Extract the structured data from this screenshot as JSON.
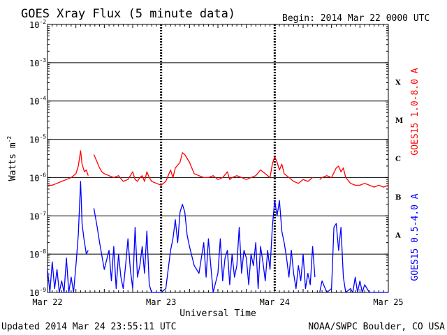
{
  "header": {
    "title": "GOES Xray Flux (5 minute data)",
    "begin": "Begin:  2014 Mar 22 0000 UTC"
  },
  "footer": {
    "updated": "Updated 2014 Mar 24 23:55:11 UTC",
    "source": "NOAA/SWPC Boulder, CO USA"
  },
  "chart_data": {
    "type": "line",
    "title": "GOES Xray Flux (5 minute data)",
    "xlabel": "Universal Time",
    "ylabel": "Watts m",
    "ylabel_sup": "-2",
    "yscale": "log",
    "ylim": [
      1e-09,
      0.01
    ],
    "xlim": [
      0,
      72
    ],
    "x_unit": "hours since 2014 Mar 22 0000 UTC",
    "x_ticks": [
      {
        "x": 0,
        "label": "Mar 22"
      },
      {
        "x": 24,
        "label": "Mar 23"
      },
      {
        "x": 48,
        "label": "Mar 24"
      },
      {
        "x": 72,
        "label": "Mar 25"
      }
    ],
    "y_ticks": [
      {
        "exp": -9,
        "base": "10",
        "sup": "-9"
      },
      {
        "exp": -8,
        "base": "10",
        "sup": "-8"
      },
      {
        "exp": -7,
        "base": "10",
        "sup": "-7"
      },
      {
        "exp": -6,
        "base": "10",
        "sup": "-6"
      },
      {
        "exp": -5,
        "base": "10",
        "sup": "-5"
      },
      {
        "exp": -4,
        "base": "10",
        "sup": "-4"
      },
      {
        "exp": -3,
        "base": "10",
        "sup": "-3"
      },
      {
        "exp": -2,
        "base": "10",
        "sup": "-2"
      }
    ],
    "flare_classes": [
      {
        "label": "A",
        "log_center": -7.5
      },
      {
        "label": "B",
        "log_center": -6.5
      },
      {
        "label": "C",
        "log_center": -5.5
      },
      {
        "label": "M",
        "log_center": -4.5
      },
      {
        "label": "X",
        "log_center": -3.5
      }
    ],
    "grid": true,
    "series": [
      {
        "name": "GOES15 1.0-8.0 A",
        "color": "#ff0000",
        "segments": [
          [
            [
              0,
              -6.2
            ],
            [
              1,
              -6.2
            ],
            [
              2,
              -6.15
            ],
            [
              3,
              -6.1
            ],
            [
              4,
              -6.05
            ],
            [
              5,
              -6.0
            ],
            [
              6,
              -5.9
            ],
            [
              6.5,
              -5.7
            ],
            [
              7,
              -5.3
            ],
            [
              7.3,
              -5.65
            ],
            [
              7.8,
              -5.85
            ],
            [
              8.2,
              -5.8
            ],
            [
              8.6,
              -5.95
            ]
          ],
          [
            [
              9.8,
              -5.4
            ],
            [
              10.5,
              -5.6
            ],
            [
              11,
              -5.75
            ],
            [
              11.5,
              -5.85
            ],
            [
              12,
              -5.9
            ],
            [
              13,
              -5.95
            ],
            [
              14,
              -6.0
            ],
            [
              15,
              -5.95
            ],
            [
              16,
              -6.1
            ],
            [
              17,
              -6.05
            ],
            [
              18,
              -5.85
            ],
            [
              18.5,
              -6.05
            ],
            [
              19,
              -6.1
            ],
            [
              19.5,
              -6.0
            ],
            [
              20,
              -5.95
            ],
            [
              20.5,
              -6.1
            ],
            [
              21,
              -5.85
            ],
            [
              21.5,
              -6.0
            ],
            [
              22,
              -6.1
            ],
            [
              23,
              -6.15
            ],
            [
              24,
              -6.2
            ],
            [
              25,
              -6.1
            ],
            [
              26,
              -5.8
            ],
            [
              26.5,
              -6.0
            ],
            [
              27,
              -5.75
            ],
            [
              28,
              -5.6
            ],
            [
              28.5,
              -5.35
            ],
            [
              29,
              -5.4
            ],
            [
              30,
              -5.6
            ],
            [
              30.5,
              -5.75
            ],
            [
              31,
              -5.9
            ],
            [
              32,
              -5.95
            ],
            [
              33,
              -6.0
            ],
            [
              34,
              -6.0
            ],
            [
              35,
              -5.95
            ],
            [
              36,
              -6.05
            ],
            [
              37,
              -6.0
            ],
            [
              38,
              -5.85
            ],
            [
              38.5,
              -6.05
            ],
            [
              39,
              -6.0
            ],
            [
              40,
              -5.95
            ],
            [
              41,
              -6.0
            ],
            [
              42,
              -6.05
            ],
            [
              43,
              -6.0
            ],
            [
              44,
              -5.95
            ],
            [
              45,
              -5.8
            ],
            [
              46,
              -5.9
            ],
            [
              47,
              -6.0
            ],
            [
              47.5,
              -5.65
            ],
            [
              48,
              -5.45
            ],
            [
              48.5,
              -5.6
            ],
            [
              49,
              -5.8
            ],
            [
              49.5,
              -5.65
            ],
            [
              50,
              -5.9
            ],
            [
              51,
              -6.0
            ],
            [
              52,
              -6.1
            ],
            [
              53,
              -6.15
            ],
            [
              54,
              -6.05
            ],
            [
              55,
              -6.1
            ],
            [
              56,
              -6.0
            ]
          ],
          [
            [
              57.5,
              -6.05
            ],
            [
              58,
              -6.0
            ],
            [
              59,
              -5.95
            ],
            [
              60,
              -6.0
            ],
            [
              61,
              -5.75
            ],
            [
              61.5,
              -5.7
            ],
            [
              62,
              -5.85
            ],
            [
              62.5,
              -5.75
            ],
            [
              63,
              -6.0
            ],
            [
              64,
              -6.15
            ],
            [
              65,
              -6.2
            ],
            [
              66,
              -6.2
            ],
            [
              67,
              -6.15
            ],
            [
              68,
              -6.2
            ],
            [
              69,
              -6.25
            ],
            [
              70,
              -6.2
            ],
            [
              71,
              -6.25
            ],
            [
              72,
              -6.2
            ]
          ]
        ]
      },
      {
        "name": "GOES15 0.5-4.0 A",
        "color": "#0000ff",
        "segments": [
          [
            [
              0,
              -8.4
            ],
            [
              0.5,
              -9.0
            ],
            [
              1,
              -8.2
            ],
            [
              1.5,
              -8.9
            ],
            [
              2,
              -8.4
            ],
            [
              2.5,
              -9.0
            ],
            [
              3,
              -8.7
            ],
            [
              3.5,
              -9.0
            ],
            [
              4,
              -8.1
            ],
            [
              4.5,
              -9.0
            ],
            [
              5,
              -8.6
            ],
            [
              5.5,
              -9.0
            ],
            [
              6,
              -8.3
            ],
            [
              6.5,
              -7.5
            ],
            [
              7,
              -6.1
            ],
            [
              7.3,
              -7.2
            ],
            [
              7.7,
              -7.6
            ],
            [
              8.2,
              -8.0
            ],
            [
              8.6,
              -7.9
            ]
          ],
          [
            [
              9.8,
              -6.8
            ],
            [
              10.5,
              -7.3
            ],
            [
              11,
              -7.7
            ],
            [
              12,
              -8.4
            ],
            [
              13,
              -7.9
            ],
            [
              13.5,
              -8.7
            ],
            [
              14,
              -7.8
            ],
            [
              14.5,
              -8.9
            ],
            [
              15,
              -8.0
            ],
            [
              15.5,
              -8.6
            ],
            [
              16,
              -8.9
            ],
            [
              16.5,
              -8.3
            ],
            [
              17,
              -7.6
            ],
            [
              17.5,
              -8.4
            ],
            [
              18,
              -8.9
            ],
            [
              18.5,
              -7.3
            ],
            [
              19,
              -8.6
            ],
            [
              19.5,
              -8.3
            ],
            [
              20,
              -7.8
            ],
            [
              20.5,
              -8.5
            ],
            [
              21,
              -7.4
            ],
            [
              21.5,
              -8.8
            ],
            [
              22,
              -9.0
            ],
            [
              23,
              -9.0
            ],
            [
              24,
              -9.0
            ],
            [
              25,
              -8.9
            ],
            [
              26,
              -7.9
            ],
            [
              26.5,
              -7.6
            ],
            [
              27,
              -7.1
            ],
            [
              27.5,
              -7.7
            ],
            [
              28,
              -6.9
            ],
            [
              28.5,
              -6.7
            ],
            [
              29,
              -6.9
            ],
            [
              29.5,
              -7.5
            ],
            [
              30,
              -7.8
            ],
            [
              31,
              -8.3
            ],
            [
              32,
              -8.5
            ],
            [
              33,
              -7.7
            ],
            [
              33.5,
              -8.6
            ],
            [
              34,
              -7.6
            ],
            [
              34.5,
              -8.3
            ],
            [
              35,
              -9.0
            ],
            [
              36,
              -8.5
            ],
            [
              36.5,
              -7.6
            ],
            [
              37,
              -8.7
            ],
            [
              37.5,
              -8.1
            ],
            [
              38,
              -7.9
            ],
            [
              38.5,
              -8.8
            ],
            [
              39,
              -8.0
            ],
            [
              39.5,
              -8.6
            ],
            [
              40,
              -8.3
            ],
            [
              40.5,
              -7.3
            ],
            [
              41,
              -8.5
            ],
            [
              41.5,
              -7.9
            ],
            [
              42,
              -8.1
            ],
            [
              42.5,
              -8.8
            ],
            [
              43,
              -8.0
            ],
            [
              43.5,
              -8.3
            ],
            [
              44,
              -7.7
            ],
            [
              44.5,
              -8.9
            ],
            [
              45,
              -7.8
            ],
            [
              45.5,
              -8.2
            ],
            [
              46,
              -8.7
            ],
            [
              46.5,
              -7.9
            ],
            [
              47,
              -8.4
            ],
            [
              47.5,
              -7.3
            ],
            [
              48,
              -6.6
            ],
            [
              48.5,
              -7.0
            ],
            [
              49,
              -6.6
            ],
            [
              49.5,
              -7.4
            ],
            [
              50,
              -7.7
            ],
            [
              50.5,
              -8.1
            ],
            [
              51,
              -8.6
            ],
            [
              51.5,
              -7.9
            ],
            [
              52,
              -8.5
            ],
            [
              52.5,
              -8.9
            ],
            [
              53,
              -8.3
            ],
            [
              53.5,
              -8.7
            ],
            [
              54,
              -8.0
            ],
            [
              54.5,
              -8.9
            ],
            [
              55,
              -8.5
            ],
            [
              55.5,
              -8.8
            ],
            [
              56,
              -7.8
            ],
            [
              56.5,
              -8.6
            ]
          ],
          [
            [
              57.5,
              -9.0
            ],
            [
              58,
              -8.7
            ],
            [
              59,
              -9.0
            ],
            [
              60,
              -8.9
            ],
            [
              60.5,
              -7.3
            ],
            [
              61,
              -7.2
            ],
            [
              61.5,
              -7.9
            ],
            [
              62,
              -7.3
            ],
            [
              62.5,
              -8.6
            ],
            [
              63,
              -9.0
            ],
            [
              64,
              -8.9
            ],
            [
              64.5,
              -9.0
            ],
            [
              65,
              -8.6
            ],
            [
              65.5,
              -9.0
            ],
            [
              66,
              -8.7
            ],
            [
              66.5,
              -9.0
            ],
            [
              67,
              -8.8
            ],
            [
              68,
              -9.0
            ],
            [
              69,
              -9.0
            ],
            [
              70,
              -9.0
            ],
            [
              71,
              -9.0
            ],
            [
              72,
              -9.0
            ]
          ]
        ]
      }
    ]
  }
}
